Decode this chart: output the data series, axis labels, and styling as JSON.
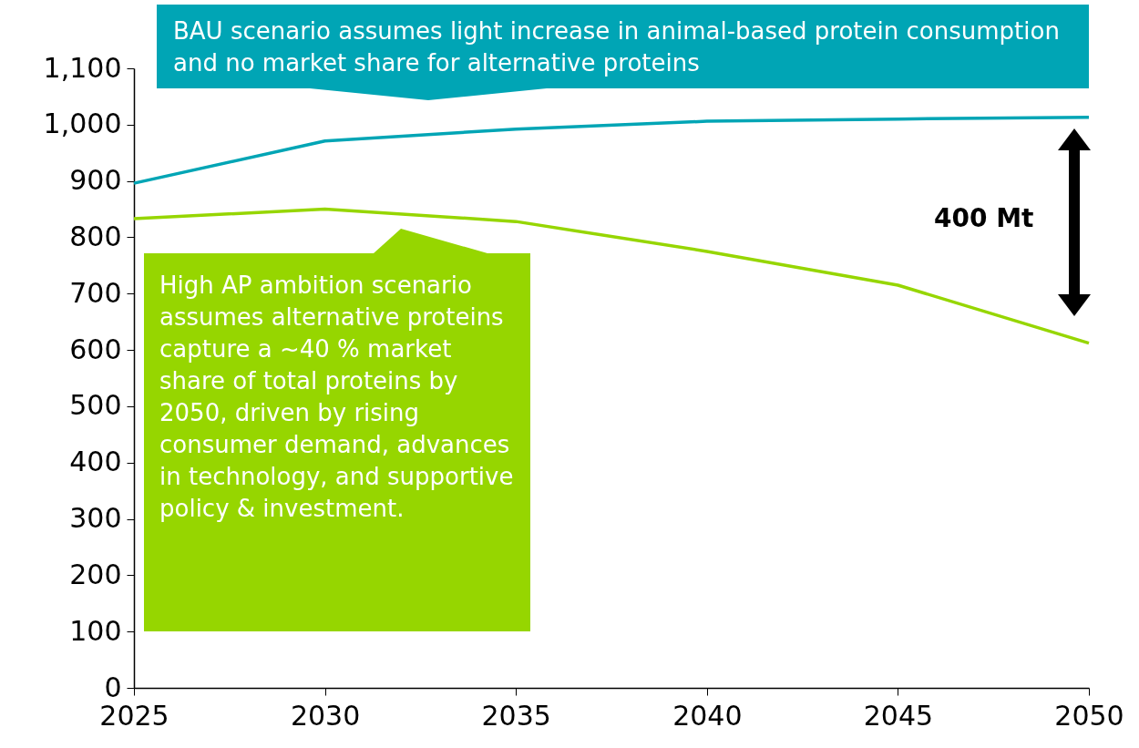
{
  "chart_data": {
    "type": "line",
    "x": [
      2025,
      2030,
      2035,
      2040,
      2045,
      2050
    ],
    "series": [
      {
        "color": "#00a5b5",
        "values": [
          896,
          971,
          992,
          1006,
          1010,
          1013
        ]
      },
      {
        "color": "#96d600",
        "values": [
          833,
          850,
          828,
          775,
          715,
          612
        ]
      }
    ],
    "xlim": [
      2025,
      2050
    ],
    "xticks": [
      2025,
      2030,
      2035,
      2040,
      2045,
      2050
    ],
    "ylim": [
      0,
      1100
    ],
    "yticks": [
      {
        "value": 0,
        "label": "0"
      },
      {
        "value": 100,
        "label": "100"
      },
      {
        "value": 200,
        "label": "200"
      },
      {
        "value": 300,
        "label": "300"
      },
      {
        "value": 400,
        "label": "400"
      },
      {
        "value": 500,
        "label": "500"
      },
      {
        "value": 600,
        "label": "600"
      },
      {
        "value": 700,
        "label": "700"
      },
      {
        "value": 800,
        "label": "800"
      },
      {
        "value": 900,
        "label": "900"
      },
      {
        "value": 1000,
        "label": "1,000"
      },
      {
        "value": 1100,
        "label": "1,100"
      }
    ],
    "grid": false,
    "annotations": [
      "BAU scenario assumes light increase in animal-based protein consumption and no market share for alternative proteins",
      "High AP ambition scenario assumes alternative proteins capture a ~40 % market share of total proteins by 2050, driven by rising consumer demand, advances in technology, and supportive policy & investment.",
      "400 Mt"
    ]
  }
}
